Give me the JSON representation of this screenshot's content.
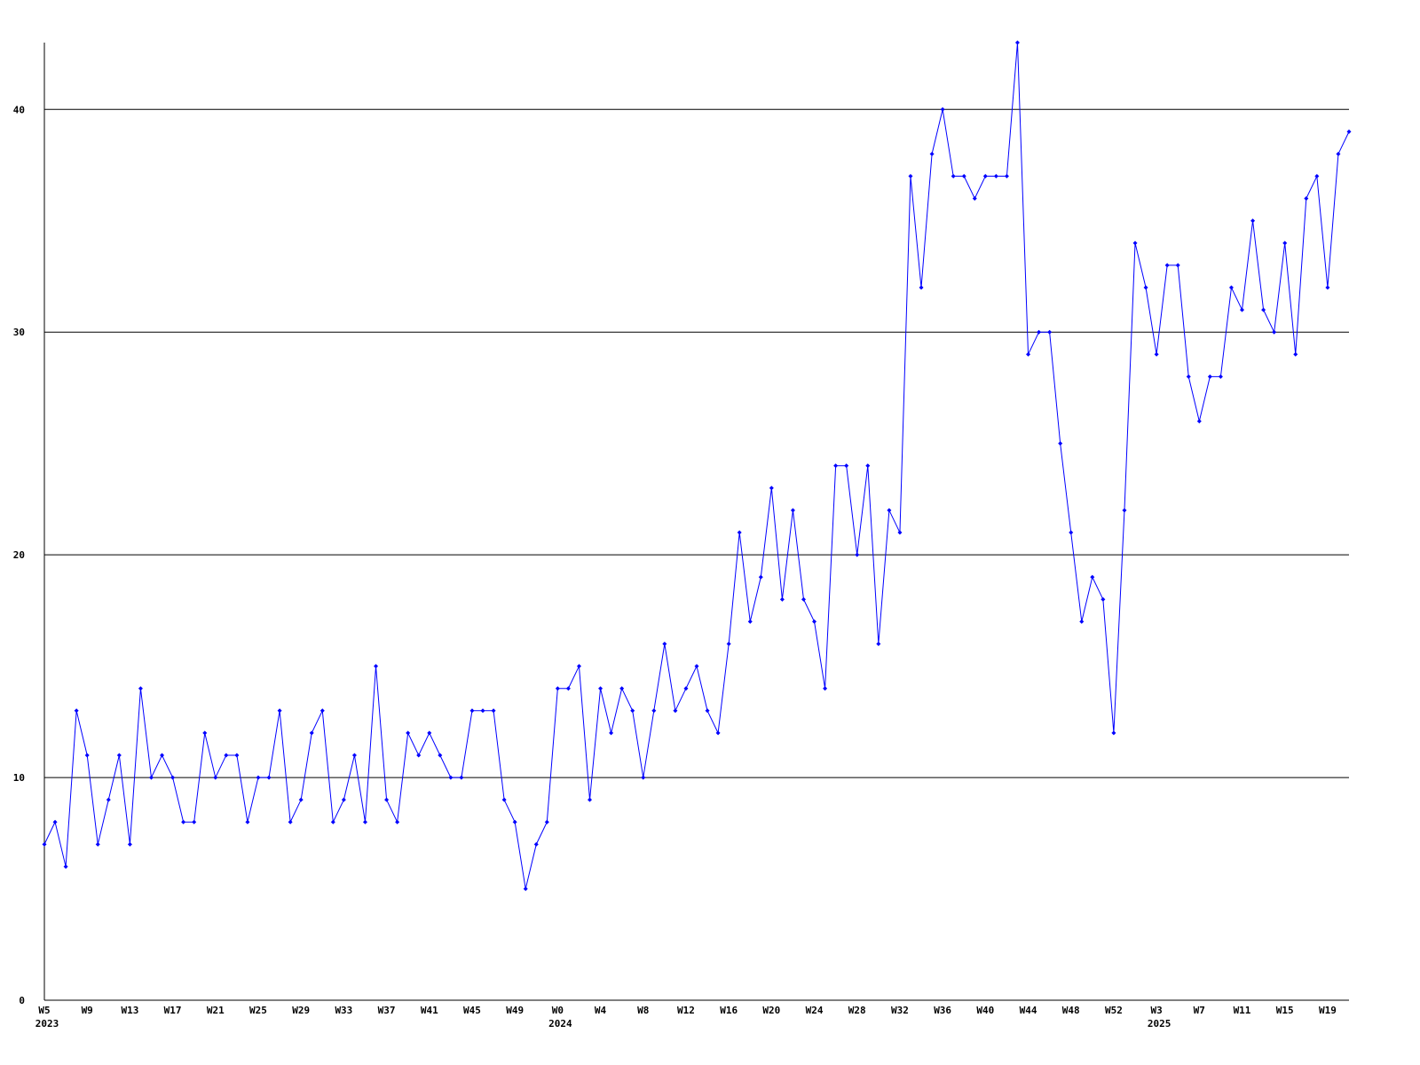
{
  "chart_data": {
    "type": "line",
    "categories": [
      "W5",
      null,
      null,
      null,
      "W9",
      null,
      null,
      null,
      "W13",
      null,
      null,
      null,
      "W17",
      null,
      null,
      null,
      "W21",
      null,
      null,
      null,
      "W25",
      null,
      null,
      null,
      "W29",
      null,
      null,
      null,
      "W33",
      null,
      null,
      null,
      "W37",
      null,
      null,
      null,
      "W41",
      null,
      null,
      null,
      "W45",
      null,
      null,
      null,
      "W49",
      null,
      null,
      null,
      "W0",
      null,
      null,
      null,
      "W4",
      null,
      null,
      null,
      "W8",
      null,
      null,
      null,
      "W12",
      null,
      null,
      null,
      "W16",
      null,
      null,
      null,
      "W20",
      null,
      null,
      null,
      "W24",
      null,
      null,
      null,
      "W28",
      null,
      null,
      null,
      "W32",
      null,
      null,
      null,
      "W36",
      null,
      null,
      null,
      "W40",
      null,
      null,
      null,
      "W44",
      null,
      null,
      null,
      "W48",
      null,
      null,
      null,
      "W52",
      null,
      null,
      null,
      "W3",
      null,
      null,
      null,
      "W7",
      null,
      null,
      null,
      "W11",
      null,
      null,
      null,
      "W15",
      null,
      null,
      null,
      "W19",
      null,
      null
    ],
    "category_years": [
      "2023",
      null,
      null,
      null,
      null,
      null,
      null,
      null,
      null,
      null,
      null,
      null,
      null,
      null,
      null,
      null,
      null,
      null,
      null,
      null,
      null,
      null,
      null,
      null,
      null,
      null,
      null,
      null,
      null,
      null,
      null,
      null,
      null,
      null,
      null,
      null,
      null,
      null,
      null,
      null,
      null,
      null,
      null,
      null,
      null,
      null,
      null,
      null,
      "2024",
      null,
      null,
      null,
      null,
      null,
      null,
      null,
      null,
      null,
      null,
      null,
      null,
      null,
      null,
      null,
      null,
      null,
      null,
      null,
      null,
      null,
      null,
      null,
      null,
      null,
      null,
      null,
      null,
      null,
      null,
      null,
      null,
      null,
      null,
      null,
      null,
      null,
      null,
      null,
      null,
      null,
      null,
      null,
      null,
      null,
      null,
      null,
      null,
      null,
      null,
      null,
      null,
      null,
      null,
      null,
      "2025",
      null,
      null,
      null,
      null,
      null,
      null,
      null,
      null,
      null,
      null,
      null,
      null,
      null,
      null,
      null,
      null,
      null
    ],
    "series": [
      {
        "color": "#0000ff",
        "values": [
          7,
          8,
          6,
          13,
          11,
          7,
          9,
          11,
          7,
          14,
          10,
          11,
          10,
          8,
          8,
          12,
          10,
          11,
          11,
          8,
          10,
          10,
          13,
          8,
          9,
          12,
          13,
          8,
          9,
          11,
          8,
          15,
          9,
          8,
          12,
          11,
          12,
          11,
          10,
          10,
          13,
          13,
          13,
          9,
          8,
          5,
          7,
          8,
          14,
          14,
          15,
          9,
          14,
          12,
          14,
          13,
          10,
          13,
          16,
          13,
          14,
          15,
          13,
          12,
          16,
          21,
          17,
          19,
          23,
          18,
          22,
          18,
          17,
          14,
          24,
          24,
          20,
          24,
          16,
          22,
          21,
          37,
          32,
          38,
          40,
          37,
          37,
          36,
          37,
          37,
          37,
          43,
          29,
          30,
          30,
          25,
          21,
          17,
          19,
          18,
          12,
          22,
          34,
          32,
          29,
          33,
          33,
          28,
          26,
          28,
          28,
          32,
          31,
          35,
          31,
          30,
          34,
          29,
          36,
          37,
          32,
          38,
          39
        ]
      }
    ],
    "ylim": [
      0,
      43
    ],
    "yticks": [
      0,
      10,
      20,
      30,
      40
    ],
    "grid": true
  }
}
